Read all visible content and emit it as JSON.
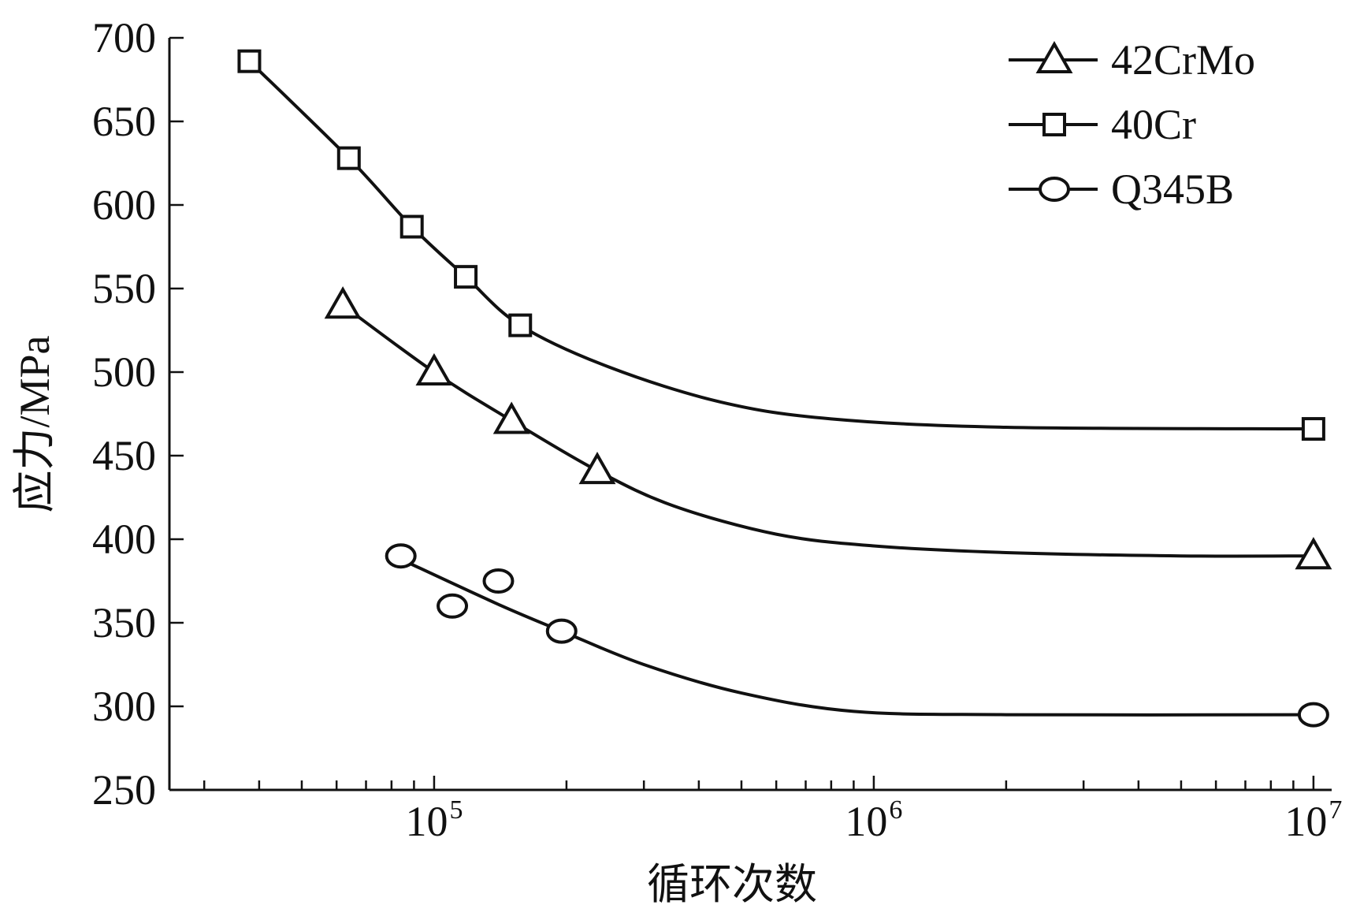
{
  "chart_data": {
    "type": "line",
    "title": "",
    "xlabel": "循环次数",
    "ylabel": "应力/MPa",
    "x_scale": "log",
    "xlim": [
      25000,
      11000000
    ],
    "ylim": [
      250,
      700
    ],
    "x_major_ticks": [
      {
        "value": 100000,
        "base": "10",
        "exponent": "5"
      },
      {
        "value": 1000000,
        "base": "10",
        "exponent": "6"
      },
      {
        "value": 10000000,
        "base": "10",
        "exponent": "7"
      }
    ],
    "y_ticks": [
      250,
      300,
      350,
      400,
      450,
      500,
      550,
      600,
      650,
      700
    ],
    "y_tick_labels": [
      "250",
      "300",
      "350",
      "400",
      "450",
      "500",
      "550",
      "600",
      "650",
      "700"
    ],
    "legend_position": "top-right",
    "series": [
      {
        "name": "42CrMo",
        "marker": "triangle",
        "points": [
          {
            "x": 62000,
            "y": 540
          },
          {
            "x": 100000,
            "y": 500
          },
          {
            "x": 150000,
            "y": 471
          },
          {
            "x": 235000,
            "y": 441
          },
          {
            "x": 10000000,
            "y": 390
          }
        ],
        "curve": [
          {
            "x": 62000,
            "y": 540
          },
          {
            "x": 100000,
            "y": 500
          },
          {
            "x": 150000,
            "y": 471
          },
          {
            "x": 235000,
            "y": 441
          },
          {
            "x": 350000,
            "y": 420
          },
          {
            "x": 600000,
            "y": 403
          },
          {
            "x": 1000000,
            "y": 396
          },
          {
            "x": 2000000,
            "y": 392
          },
          {
            "x": 5000000,
            "y": 390
          },
          {
            "x": 10000000,
            "y": 390
          }
        ]
      },
      {
        "name": "40Cr",
        "marker": "square",
        "points": [
          {
            "x": 38000,
            "y": 686
          },
          {
            "x": 64000,
            "y": 628
          },
          {
            "x": 89000,
            "y": 587
          },
          {
            "x": 118000,
            "y": 557
          },
          {
            "x": 157000,
            "y": 528
          },
          {
            "x": 10000000,
            "y": 466
          }
        ],
        "curve": [
          {
            "x": 38000,
            "y": 686
          },
          {
            "x": 64000,
            "y": 628
          },
          {
            "x": 89000,
            "y": 587
          },
          {
            "x": 118000,
            "y": 557
          },
          {
            "x": 157000,
            "y": 528
          },
          {
            "x": 250000,
            "y": 503
          },
          {
            "x": 450000,
            "y": 482
          },
          {
            "x": 800000,
            "y": 472
          },
          {
            "x": 2000000,
            "y": 467
          },
          {
            "x": 10000000,
            "y": 466
          }
        ]
      },
      {
        "name": "Q345B",
        "marker": "circle",
        "points": [
          {
            "x": 84000,
            "y": 390
          },
          {
            "x": 110000,
            "y": 360
          },
          {
            "x": 140000,
            "y": 375
          },
          {
            "x": 195000,
            "y": 345
          },
          {
            "x": 10000000,
            "y": 295
          }
        ],
        "curve": [
          {
            "x": 84000,
            "y": 388
          },
          {
            "x": 140000,
            "y": 361
          },
          {
            "x": 195000,
            "y": 345
          },
          {
            "x": 300000,
            "y": 325
          },
          {
            "x": 500000,
            "y": 308
          },
          {
            "x": 900000,
            "y": 297
          },
          {
            "x": 2000000,
            "y": 295
          },
          {
            "x": 10000000,
            "y": 295
          }
        ]
      }
    ]
  },
  "colors": {
    "foreground": "#111111",
    "background": "#ffffff"
  }
}
